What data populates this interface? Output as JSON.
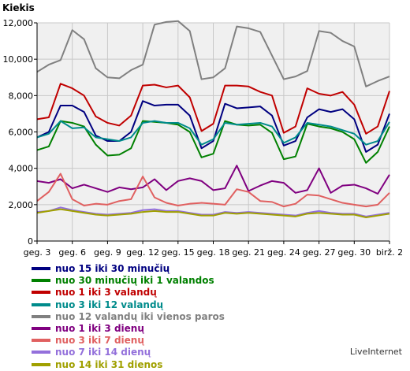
{
  "watermark": "LiveInternet",
  "chart_data": {
    "type": "line",
    "ylabel": "Kiekis",
    "ylim": [
      0,
      12000
    ],
    "yticks": [
      "0",
      "2,000",
      "4,000",
      "6,000",
      "8,000",
      "10,000",
      "12,000"
    ],
    "ytick_values": [
      0,
      2000,
      4000,
      6000,
      8000,
      10000,
      12000
    ],
    "xlim": [
      0,
      30
    ],
    "xtick_labels": [
      "geg. 3",
      "geg. 6",
      "geg. 9",
      "geg. 12",
      "geg. 15",
      "geg. 18",
      "geg. 21",
      "geg. 24",
      "geg. 27",
      "geg. 30",
      "birž. 2"
    ],
    "xtick_positions": [
      0,
      3,
      6,
      9,
      12,
      15,
      18,
      21,
      24,
      27,
      30
    ],
    "grid": true,
    "series": [
      {
        "name": "nuo 15 iki 30 minučių",
        "color": "#000080",
        "values": [
          5700,
          6000,
          7450,
          7450,
          7100,
          5800,
          5500,
          5500,
          6000,
          7700,
          7450,
          7500,
          7500,
          6900,
          5100,
          5500,
          7550,
          7300,
          7350,
          7400,
          6900,
          5250,
          5500,
          6800,
          7250,
          7100,
          7250,
          6700,
          4900,
          5300,
          7000
        ]
      },
      {
        "name": "nuo 30 minučių iki 1 valandos",
        "color": "#008000",
        "values": [
          5000,
          5200,
          6600,
          6500,
          6300,
          5300,
          4700,
          4750,
          5100,
          6600,
          6550,
          6500,
          6400,
          6000,
          4600,
          4800,
          6600,
          6400,
          6350,
          6400,
          5950,
          4500,
          4650,
          6450,
          6300,
          6200,
          6000,
          5600,
          4300,
          4900,
          6300
        ]
      },
      {
        "name": "nuo 1 iki 3 valandų",
        "color": "#c00000",
        "values": [
          6700,
          6800,
          8650,
          8400,
          8000,
          6850,
          6500,
          6350,
          6900,
          8550,
          8600,
          8450,
          8550,
          7900,
          6050,
          6450,
          8550,
          8550,
          8500,
          8200,
          8000,
          5950,
          6300,
          8400,
          8100,
          8000,
          8200,
          7500,
          5900,
          6300,
          8250
        ]
      },
      {
        "name": "nuo 3 iki 12 valandų",
        "color": "#008b8b",
        "values": [
          5700,
          5900,
          6600,
          6200,
          6250,
          5700,
          5600,
          5500,
          5700,
          6500,
          6600,
          6500,
          6500,
          6200,
          5300,
          5600,
          6500,
          6400,
          6450,
          6500,
          6300,
          5400,
          5700,
          6500,
          6400,
          6300,
          6100,
          5900,
          5300,
          5500,
          6550
        ]
      },
      {
        "name": "nuo 12 valandų iki vienos paros",
        "color": "#808080",
        "values": [
          9300,
          9700,
          9950,
          11600,
          11100,
          9500,
          9000,
          8950,
          9400,
          9700,
          11900,
          12050,
          12100,
          11550,
          8900,
          9000,
          9500,
          11800,
          11700,
          11500,
          10200,
          8900,
          9050,
          9350,
          11550,
          11450,
          11000,
          10700,
          8500,
          8800,
          9050
        ]
      },
      {
        "name": "nuo 1 iki 3 dienų",
        "color": "#800080",
        "values": [
          3300,
          3200,
          3400,
          2900,
          3100,
          2900,
          2700,
          2950,
          2850,
          2950,
          3400,
          2800,
          3300,
          3450,
          3300,
          2800,
          2900,
          4150,
          2750,
          3050,
          3300,
          3200,
          2650,
          2800,
          4000,
          2650,
          3050,
          3100,
          2900,
          2600,
          3650
        ]
      },
      {
        "name": "nuo 3 iki 7 dienų",
        "color": "#e06060",
        "values": [
          2200,
          2700,
          3700,
          2300,
          1950,
          2050,
          2000,
          2200,
          2300,
          3550,
          2400,
          2100,
          1950,
          2050,
          2100,
          2050,
          2000,
          2850,
          2700,
          2200,
          2150,
          1900,
          2050,
          2550,
          2500,
          2300,
          2100,
          2000,
          1900,
          2000,
          2650
        ]
      },
      {
        "name": "nuo 7 iki 14 dienų",
        "color": "#9370db",
        "values": [
          1600,
          1650,
          1850,
          1700,
          1600,
          1500,
          1450,
          1500,
          1550,
          1700,
          1750,
          1650,
          1650,
          1550,
          1450,
          1450,
          1600,
          1550,
          1600,
          1550,
          1500,
          1450,
          1400,
          1550,
          1650,
          1550,
          1500,
          1500,
          1350,
          1450,
          1550
        ]
      },
      {
        "name": "nuo 14 iki 31 dienos",
        "color": "#a0a000",
        "values": [
          1550,
          1650,
          1750,
          1650,
          1550,
          1450,
          1400,
          1450,
          1500,
          1600,
          1650,
          1600,
          1600,
          1500,
          1400,
          1400,
          1550,
          1500,
          1550,
          1500,
          1450,
          1400,
          1350,
          1500,
          1550,
          1500,
          1450,
          1450,
          1300,
          1400,
          1500
        ]
      }
    ]
  }
}
